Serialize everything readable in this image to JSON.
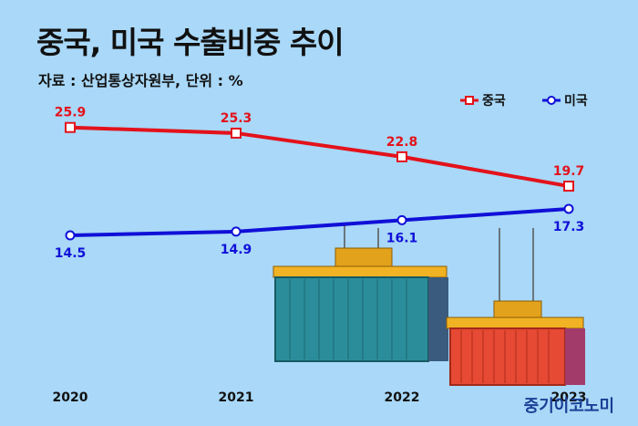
{
  "header": {
    "title": "중국, 미국 수출비중 추이",
    "source": "자료 : 산업통상자원부, 단위 : %"
  },
  "brand": "중기이코노미",
  "colors": {
    "china": "#e3121b",
    "usa": "#1010d8",
    "background": "#a9d8f8"
  },
  "chart_data": {
    "type": "line",
    "title": "중국, 미국 수출비중 추이",
    "x": [
      "2020",
      "2021",
      "2022",
      "2023"
    ],
    "series": [
      {
        "name": "중국",
        "values": [
          25.9,
          25.3,
          22.8,
          19.7
        ],
        "color": "#e3121b",
        "marker": "square"
      },
      {
        "name": "미국",
        "values": [
          14.5,
          14.9,
          16.1,
          17.3
        ],
        "color": "#1010d8",
        "marker": "circle"
      }
    ],
    "ylabel": "%",
    "ylim": [
      10,
      30
    ],
    "grid": false,
    "legend": "top-right"
  }
}
